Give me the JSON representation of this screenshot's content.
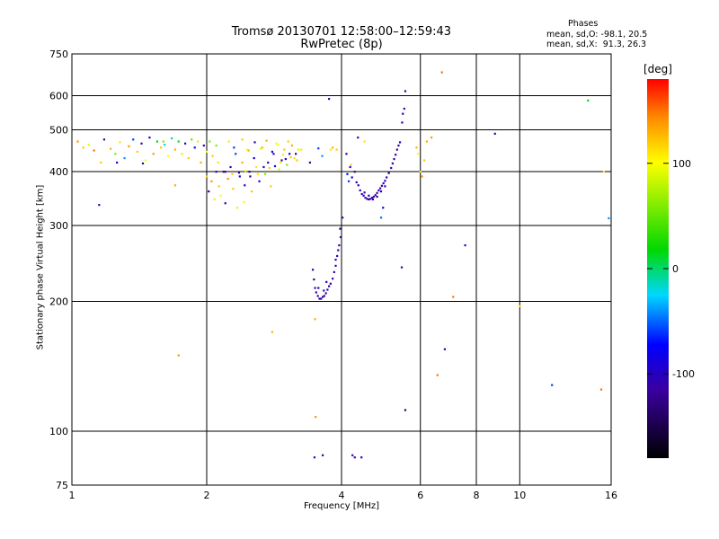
{
  "header": {
    "title_line1": "Tromsø 20130701 12:58:00–12:59:43",
    "title_line2": "RwPretec (8p)",
    "stats_title": "Phases",
    "stats_line1": "mean, sd,O: -98.1, 20.5",
    "stats_line2": "mean, sd,X:  91.3, 26.3"
  },
  "colorbar": {
    "label": "[deg]",
    "ticks": [
      {
        "value": 100,
        "text": "100"
      },
      {
        "value": 0,
        "text": "0"
      },
      {
        "value": -100,
        "text": "-100"
      }
    ],
    "range": [
      -180,
      180
    ]
  },
  "chart_data": {
    "type": "scatter",
    "title": "Tromsø 20130701 12:58:00–12:59:43 RwPretec (8p)",
    "xlabel": "Frequency [MHz]",
    "ylabel": "Stationary phase Virtual Height [km]",
    "xscale": "log",
    "yscale": "log",
    "xlim": [
      1,
      16
    ],
    "ylim": [
      75,
      750
    ],
    "grid": true,
    "xticks": [
      1,
      2,
      4,
      6,
      8,
      10,
      16
    ],
    "xticklabels": [
      "1",
      "2",
      "4",
      "6",
      "8",
      "10",
      "16"
    ],
    "yticks": [
      75,
      100,
      200,
      300,
      400,
      500,
      600,
      750
    ],
    "yticklabels": [
      "75",
      "100",
      "200",
      "300",
      "400",
      "500",
      "600",
      "750"
    ],
    "points": [
      [
        1.03,
        470,
        140
      ],
      [
        1.06,
        455,
        120
      ],
      [
        1.09,
        462,
        90
      ],
      [
        1.12,
        448,
        150
      ],
      [
        1.15,
        335,
        -110
      ],
      [
        1.18,
        475,
        -110
      ],
      [
        1.22,
        452,
        130
      ],
      [
        1.25,
        440,
        60
      ],
      [
        1.28,
        468,
        110
      ],
      [
        1.31,
        430,
        -40
      ],
      [
        1.34,
        458,
        140
      ],
      [
        1.37,
        475,
        -60
      ],
      [
        1.4,
        445,
        120
      ],
      [
        1.43,
        465,
        -120
      ],
      [
        1.46,
        425,
        100
      ],
      [
        1.49,
        480,
        -90
      ],
      [
        1.52,
        440,
        140
      ],
      [
        1.55,
        470,
        20
      ],
      [
        1.58,
        455,
        120
      ],
      [
        1.61,
        462,
        -20
      ],
      [
        1.64,
        435,
        100
      ],
      [
        1.67,
        478,
        -10
      ],
      [
        1.7,
        450,
        130
      ],
      [
        1.73,
        470,
        10
      ],
      [
        1.76,
        440,
        110
      ],
      [
        1.79,
        465,
        -100
      ],
      [
        1.82,
        430,
        120
      ],
      [
        1.85,
        475,
        50
      ],
      [
        1.88,
        455,
        -70
      ],
      [
        1.91,
        470,
        110
      ],
      [
        1.94,
        420,
        130
      ],
      [
        1.97,
        460,
        -120
      ],
      [
        2.0,
        445,
        100
      ],
      [
        2.03,
        470,
        60
      ],
      [
        2.06,
        435,
        120
      ],
      [
        1.7,
        372,
        130
      ],
      [
        1.16,
        420,
        120
      ],
      [
        1.26,
        420,
        -90
      ],
      [
        1.44,
        418,
        -110
      ],
      [
        1.6,
        470,
        60
      ],
      [
        2.0,
        390,
        120
      ],
      [
        2.02,
        360,
        -120
      ],
      [
        2.05,
        380,
        140
      ],
      [
        2.08,
        345,
        110
      ],
      [
        2.1,
        400,
        -110
      ],
      [
        2.13,
        370,
        120
      ],
      [
        2.15,
        352,
        100
      ],
      [
        2.18,
        400,
        -130
      ],
      [
        2.2,
        338,
        -110
      ],
      [
        2.23,
        385,
        140
      ],
      [
        2.26,
        410,
        -120
      ],
      [
        2.29,
        365,
        120
      ],
      [
        2.32,
        440,
        -60
      ],
      [
        2.34,
        330,
        110
      ],
      [
        2.37,
        390,
        -90
      ],
      [
        2.4,
        420,
        130
      ],
      [
        2.43,
        372,
        -110
      ],
      [
        2.46,
        450,
        100
      ],
      [
        2.49,
        400,
        -130
      ],
      [
        2.52,
        360,
        120
      ],
      [
        2.55,
        430,
        -80
      ],
      [
        2.58,
        410,
        110
      ],
      [
        2.62,
        380,
        -100
      ],
      [
        2.66,
        455,
        130
      ],
      [
        2.7,
        395,
        60
      ],
      [
        2.74,
        420,
        -90
      ],
      [
        2.78,
        370,
        120
      ],
      [
        2.82,
        440,
        -110
      ],
      [
        2.86,
        465,
        100
      ],
      [
        2.9,
        405,
        90
      ],
      [
        2.94,
        425,
        -100
      ],
      [
        2.98,
        450,
        120
      ],
      [
        3.02,
        415,
        60
      ],
      [
        3.06,
        440,
        -90
      ],
      [
        3.1,
        460,
        130
      ],
      [
        3.14,
        430,
        110
      ],
      [
        2.2,
        400,
        -120
      ],
      [
        2.28,
        395,
        120
      ],
      [
        2.36,
        398,
        -110
      ],
      [
        2.44,
        402,
        100
      ],
      [
        2.5,
        390,
        -130
      ],
      [
        2.6,
        395,
        110
      ],
      [
        2.68,
        410,
        -110
      ],
      [
        2.76,
        408,
        120
      ],
      [
        2.84,
        412,
        -90
      ],
      [
        2.92,
        420,
        110
      ],
      [
        3.0,
        428,
        -100
      ],
      [
        3.08,
        432,
        120
      ],
      [
        3.16,
        440,
        -110
      ],
      [
        3.2,
        450,
        90
      ],
      [
        2.24,
        470,
        110
      ],
      [
        2.4,
        475,
        120
      ],
      [
        2.56,
        468,
        -110
      ],
      [
        2.72,
        472,
        130
      ],
      [
        2.88,
        462,
        100
      ],
      [
        3.04,
        470,
        120
      ],
      [
        3.25,
        450,
        110
      ],
      [
        2.1,
        460,
        60
      ],
      [
        2.3,
        455,
        -60
      ],
      [
        2.48,
        448,
        130
      ],
      [
        2.64,
        452,
        90
      ],
      [
        2.8,
        445,
        -100
      ],
      [
        2.96,
        438,
        110
      ],
      [
        3.18,
        425,
        120
      ],
      [
        2.12,
        420,
        110
      ],
      [
        2.42,
        340,
        100
      ],
      [
        2.8,
        170,
        130
      ],
      [
        1.73,
        150,
        140
      ],
      [
        3.45,
        237,
        -110
      ],
      [
        3.47,
        225,
        -120
      ],
      [
        3.49,
        215,
        -100
      ],
      [
        3.51,
        210,
        -115
      ],
      [
        3.54,
        206,
        -110
      ],
      [
        3.57,
        203,
        -130
      ],
      [
        3.6,
        203,
        -110
      ],
      [
        3.63,
        205,
        -120
      ],
      [
        3.66,
        206,
        -115
      ],
      [
        3.69,
        209,
        -110
      ],
      [
        3.72,
        213,
        -100
      ],
      [
        3.75,
        217,
        -120
      ],
      [
        3.78,
        220,
        -110
      ],
      [
        3.82,
        226,
        -110
      ],
      [
        3.85,
        234,
        -120
      ],
      [
        3.88,
        242,
        -110
      ],
      [
        3.91,
        255,
        -100
      ],
      [
        3.93,
        263,
        -110
      ],
      [
        3.95,
        270,
        -120
      ],
      [
        3.98,
        282,
        -110
      ],
      [
        4.02,
        313,
        -110
      ],
      [
        3.55,
        215,
        -105
      ],
      [
        3.65,
        212,
        -115
      ],
      [
        3.7,
        222,
        -105
      ],
      [
        3.88,
        250,
        -115
      ],
      [
        3.97,
        295,
        -110
      ],
      [
        3.49,
        182,
        130
      ],
      [
        3.5,
        108,
        140
      ],
      [
        3.48,
        87,
        -110
      ],
      [
        3.63,
        88,
        -120
      ],
      [
        4.23,
        88,
        -110
      ],
      [
        4.28,
        87,
        -115
      ],
      [
        4.43,
        87,
        -100
      ],
      [
        3.4,
        420,
        -120
      ],
      [
        3.62,
        435,
        -40
      ],
      [
        3.55,
        453,
        -60
      ],
      [
        3.82,
        455,
        130
      ],
      [
        3.78,
        450,
        110
      ],
      [
        3.75,
        590,
        -110
      ],
      [
        3.9,
        450,
        120
      ],
      [
        4.1,
        440,
        -110
      ],
      [
        4.18,
        410,
        -100
      ],
      [
        4.22,
        388,
        -90
      ],
      [
        4.28,
        400,
        -120
      ],
      [
        4.32,
        378,
        -110
      ],
      [
        4.36,
        372,
        -100
      ],
      [
        4.4,
        362,
        -120
      ],
      [
        4.44,
        355,
        -110
      ],
      [
        4.48,
        352,
        -100
      ],
      [
        4.52,
        348,
        -115
      ],
      [
        4.56,
        346,
        -110
      ],
      [
        4.6,
        345,
        -120
      ],
      [
        4.64,
        346,
        -110
      ],
      [
        4.68,
        348,
        -100
      ],
      [
        4.72,
        350,
        -110
      ],
      [
        4.76,
        353,
        -120
      ],
      [
        4.8,
        357,
        -110
      ],
      [
        4.84,
        362,
        -100
      ],
      [
        4.88,
        366,
        -110
      ],
      [
        4.92,
        371,
        -120
      ],
      [
        4.96,
        376,
        -110
      ],
      [
        5.0,
        381,
        -100
      ],
      [
        5.04,
        388,
        -110
      ],
      [
        5.1,
        397,
        -120
      ],
      [
        5.16,
        408,
        -110
      ],
      [
        5.2,
        418,
        -100
      ],
      [
        5.24,
        428,
        -110
      ],
      [
        5.28,
        438,
        -120
      ],
      [
        5.32,
        450,
        -110
      ],
      [
        5.36,
        460,
        -110
      ],
      [
        5.4,
        468,
        -100
      ],
      [
        4.5,
        358,
        -110
      ],
      [
        4.6,
        352,
        -90
      ],
      [
        4.7,
        345,
        -110
      ],
      [
        4.8,
        350,
        -120
      ],
      [
        4.9,
        360,
        -100
      ],
      [
        5.0,
        370,
        -110
      ],
      [
        5.46,
        520,
        -110
      ],
      [
        5.48,
        545,
        -120
      ],
      [
        5.52,
        560,
        -110
      ],
      [
        5.55,
        615,
        -120
      ],
      [
        4.35,
        480,
        -110
      ],
      [
        4.5,
        470,
        110
      ],
      [
        4.12,
        395,
        -80
      ],
      [
        4.2,
        415,
        120
      ],
      [
        4.15,
        380,
        -60
      ],
      [
        4.9,
        313,
        -50
      ],
      [
        4.95,
        330,
        -80
      ],
      [
        5.45,
        240,
        -110
      ],
      [
        5.55,
        112,
        -130
      ],
      [
        5.88,
        455,
        130
      ],
      [
        5.92,
        440,
        100
      ],
      [
        6.0,
        400,
        110
      ],
      [
        6.05,
        390,
        140
      ],
      [
        6.12,
        425,
        120
      ],
      [
        6.2,
        470,
        130
      ],
      [
        6.35,
        480,
        140
      ],
      [
        6.7,
        680,
        150
      ],
      [
        6.55,
        135,
        150
      ],
      [
        6.8,
        155,
        -110
      ],
      [
        7.1,
        205,
        150
      ],
      [
        7.55,
        270,
        -110
      ],
      [
        8.8,
        490,
        -110
      ],
      [
        10.0,
        195,
        110
      ],
      [
        11.8,
        128,
        -60
      ],
      [
        14.2,
        585,
        20
      ],
      [
        15.2,
        125,
        150
      ],
      [
        15.4,
        400,
        110
      ],
      [
        15.8,
        312,
        -40
      ]
    ]
  }
}
